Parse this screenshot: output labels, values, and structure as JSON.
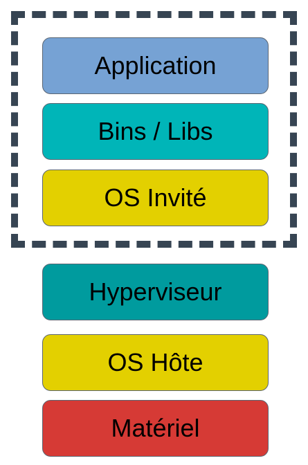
{
  "virtual_machine": {
    "layers": [
      {
        "label": "Application",
        "color": "#76a2d4"
      },
      {
        "label": "Bins / Libs",
        "color": "#00b5b8"
      },
      {
        "label": "OS Invité",
        "color": "#e3d000"
      }
    ]
  },
  "host": {
    "layers": [
      {
        "label": "Hyperviseur",
        "color": "#009b9e"
      },
      {
        "label": "OS Hôte",
        "color": "#e3d000"
      },
      {
        "label": "Matériel",
        "color": "#d63a35"
      }
    ]
  }
}
